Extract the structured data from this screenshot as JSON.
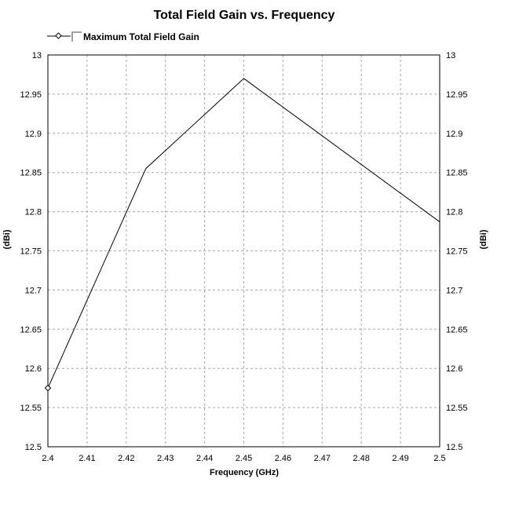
{
  "chart_data": {
    "type": "line",
    "title": "Total Field Gain vs. Frequency",
    "xlabel": "Frequency (GHz)",
    "ylabel": "(dBi)",
    "ylabel_right": "(dBi)",
    "xlim": [
      2.4,
      2.5
    ],
    "ylim": [
      12.5,
      13
    ],
    "x_ticks": [
      "2.4",
      "2.41",
      "2.42",
      "2.43",
      "2.44",
      "2.45",
      "2.46",
      "2.47",
      "2.48",
      "2.49",
      "2.5"
    ],
    "y_ticks": [
      "12.5",
      "12.55",
      "12.6",
      "12.65",
      "12.7",
      "12.75",
      "12.8",
      "12.85",
      "12.9",
      "12.95",
      "13"
    ],
    "grid": true,
    "legend_position": "top-left",
    "series": [
      {
        "name": "Maximum Total Field Gain",
        "color": "#000000",
        "x": [
          2.4,
          2.425,
          2.45,
          2.5
        ],
        "y": [
          12.575,
          12.855,
          12.97,
          12.787
        ]
      }
    ]
  }
}
